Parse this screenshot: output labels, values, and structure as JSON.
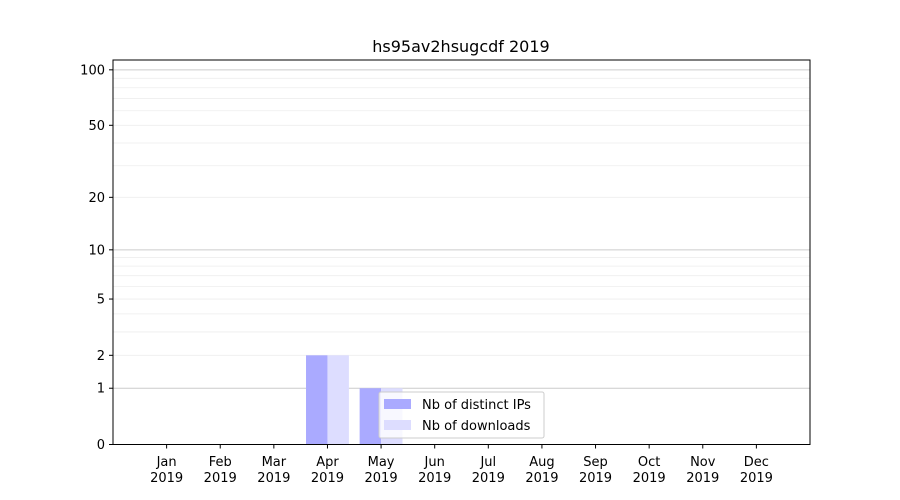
{
  "chart_data": {
    "type": "bar",
    "title": "hs95av2hsugcdf 2019",
    "xlabel": "",
    "ylabel": "",
    "yscale": "log(1+y)",
    "ylim": [
      0,
      113
    ],
    "yticks": [
      0,
      1,
      2,
      5,
      10,
      20,
      50,
      100
    ],
    "ytick_labels": [
      "0",
      "1",
      "2",
      "5",
      "10",
      "20",
      "50",
      "100"
    ],
    "grid": true,
    "legend_position": "bottom-center",
    "categories": [
      "Jan\n2019",
      "Feb\n2019",
      "Mar\n2019",
      "Apr\n2019",
      "May\n2019",
      "Jun\n2019",
      "Jul\n2019",
      "Aug\n2019",
      "Sep\n2019",
      "Oct\n2019",
      "Nov\n2019",
      "Dec\n2019"
    ],
    "category_month": [
      "Jan",
      "Feb",
      "Mar",
      "Apr",
      "May",
      "Jun",
      "Jul",
      "Aug",
      "Sep",
      "Oct",
      "Nov",
      "Dec"
    ],
    "category_year": "2019",
    "series": [
      {
        "name": "Nb of distinct IPs",
        "color": "#aaaaff",
        "values": [
          0,
          0,
          0,
          2,
          1,
          0,
          0,
          0,
          0,
          0,
          0,
          0
        ]
      },
      {
        "name": "Nb of downloads",
        "color": "#ddddff",
        "values": [
          0,
          0,
          0,
          2,
          1,
          0,
          0,
          0,
          0,
          0,
          0,
          0
        ]
      }
    ]
  }
}
